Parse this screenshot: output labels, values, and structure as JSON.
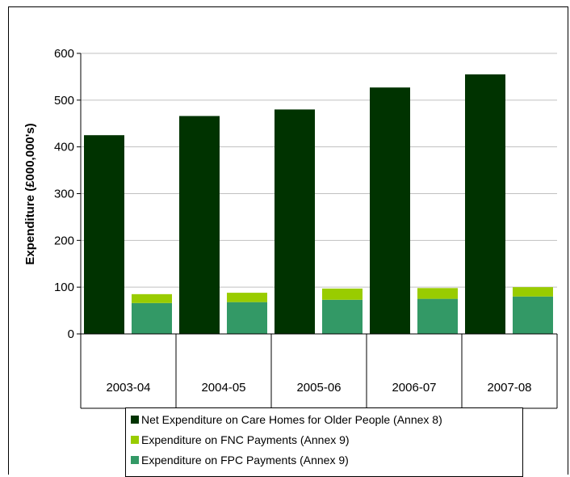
{
  "chart_data": {
    "type": "bar",
    "categories": [
      "2003-04",
      "2004-05",
      "2005-06",
      "2006-07",
      "2007-08"
    ],
    "ylabel": "Expenditure (£000,000's)",
    "xlabel": "",
    "ylim": [
      0,
      600
    ],
    "yticks": [
      0,
      100,
      200,
      300,
      400,
      500,
      600
    ],
    "grid": true,
    "legend_position": "bottom",
    "series": [
      {
        "name": "Net Expenditure on Care Homes for Older People (Annex 8)",
        "color": "#003300",
        "values": [
          425,
          466,
          480,
          527,
          555
        ],
        "stack": "A"
      },
      {
        "name": "Expenditure on FPC Payments (Annex 9)",
        "color": "#339966",
        "values": [
          66,
          68,
          73,
          75,
          80
        ],
        "stack": "B"
      },
      {
        "name": "Expenditure on FNC Payments (Annex 9)",
        "color": "#99CC00",
        "values": [
          19,
          20,
          24,
          23,
          20
        ],
        "stack": "B"
      }
    ],
    "legend_order": [
      0,
      2,
      1
    ]
  }
}
